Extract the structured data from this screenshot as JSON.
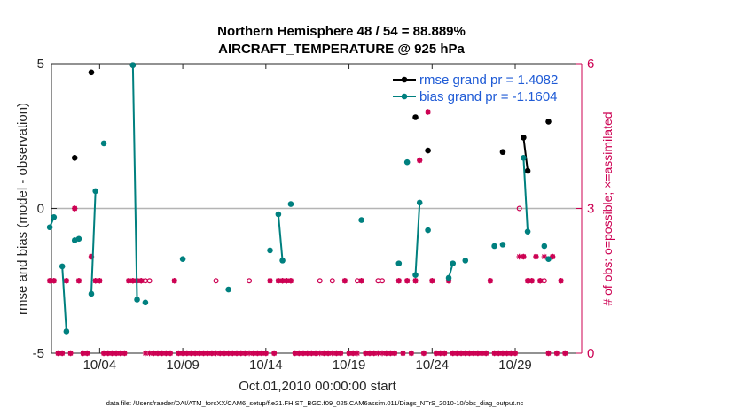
{
  "titles": {
    "line1": "Northern Hemisphere 48 / 54 = 88.889%",
    "line2": "AIRCRAFT_TEMPERATURE @ 925 hPa"
  },
  "footer": "data file: /Users/raeder/DAI/ATM_forcXX/CAM6_setup/f.e21.FHIST_BGC.f09_025.CAM6assim.011/Diags_NTrS_2010-10/obs_diag_output.nc",
  "colors": {
    "rmse": "#000000",
    "bias": "#00807f",
    "obs": "#cc0052",
    "legend_text": "#1f5bd6",
    "zero_line": "#b4b4b4"
  },
  "chart_data": {
    "type": "scatter",
    "xlabel": "Oct.01,2010 00:00:00 start",
    "ylabel": "rmse and bias (model - observation)",
    "y2label": "# of obs: o=possible; ×=assimilated",
    "xlim": [
      0.1,
      32.0
    ],
    "ylim": [
      -5,
      5
    ],
    "y2lim": [
      0,
      6
    ],
    "xticks": [
      3,
      8,
      13,
      18,
      23,
      28
    ],
    "xtick_labels": [
      "10/04",
      "10/09",
      "10/14",
      "10/19",
      "10/24",
      "10/29"
    ],
    "yticks": [
      -5,
      0,
      5
    ],
    "ytick_labels": [
      "-5",
      "0",
      "5"
    ],
    "y2ticks": [
      0,
      3,
      6
    ],
    "y2tick_labels": [
      "0",
      "3",
      "6"
    ],
    "grid": false,
    "legend_position": "top-right",
    "series": [
      {
        "name": "rmse grand pr = 1.4082",
        "segments": [
          [
            [
              1.5,
              1.75
            ]
          ],
          [
            [
              2.5,
              4.7
            ]
          ],
          [
            [
              5.0,
              4.95
            ]
          ],
          [
            [
              22.0,
              3.15
            ]
          ],
          [
            [
              22.75,
              2.0
            ]
          ],
          [
            [
              27.25,
              1.95
            ]
          ],
          [
            [
              28.5,
              2.45
            ],
            [
              28.75,
              1.3
            ]
          ],
          [
            [
              30.0,
              3.0
            ]
          ]
        ]
      },
      {
        "name": "bias grand pr = -1.1604",
        "segments": [
          [
            [
              0.0,
              -0.65
            ],
            [
              0.25,
              -0.3
            ]
          ],
          [
            [
              0.75,
              -2.0
            ],
            [
              1.0,
              -4.25
            ]
          ],
          [
            [
              1.5,
              -1.1
            ],
            [
              1.75,
              -1.05
            ]
          ],
          [
            [
              2.5,
              -2.95
            ],
            [
              2.75,
              0.6
            ]
          ],
          [
            [
              3.25,
              2.25
            ]
          ],
          [
            [
              5.0,
              4.95
            ],
            [
              5.25,
              -3.15
            ]
          ],
          [
            [
              5.75,
              -3.25
            ]
          ],
          [
            [
              8.0,
              -1.75
            ]
          ],
          [
            [
              10.75,
              -2.8
            ]
          ],
          [
            [
              13.25,
              -1.45
            ]
          ],
          [
            [
              13.75,
              -0.2
            ],
            [
              14.0,
              -1.8
            ]
          ],
          [
            [
              14.5,
              0.15
            ]
          ],
          [
            [
              18.75,
              -0.4
            ]
          ],
          [
            [
              21.0,
              -1.9
            ]
          ],
          [
            [
              21.5,
              1.6
            ]
          ],
          [
            [
              22.0,
              -2.3
            ],
            [
              22.25,
              0.2
            ]
          ],
          [
            [
              22.75,
              -0.75
            ]
          ],
          [
            [
              24.0,
              -2.4
            ],
            [
              24.25,
              -1.9
            ]
          ],
          [
            [
              25.0,
              -1.8
            ]
          ],
          [
            [
              26.75,
              -1.3
            ]
          ],
          [
            [
              27.25,
              -1.25
            ]
          ],
          [
            [
              28.5,
              1.75
            ],
            [
              28.75,
              -0.8
            ]
          ],
          [
            [
              29.75,
              -1.3
            ]
          ],
          [
            [
              30.0,
              -1.75
            ]
          ]
        ]
      }
    ],
    "obs_possible": [
      [
        0,
        1.5
      ],
      [
        0.25,
        1.5
      ],
      [
        0.5,
        0
      ],
      [
        0.75,
        0
      ],
      [
        1,
        1.5
      ],
      [
        1.25,
        0
      ],
      [
        1.5,
        3
      ],
      [
        1.75,
        1.5
      ],
      [
        2,
        0
      ],
      [
        2.25,
        0
      ],
      [
        2.5,
        2
      ],
      [
        2.75,
        1.5
      ],
      [
        3,
        1.5
      ],
      [
        3.25,
        0
      ],
      [
        3.5,
        0
      ],
      [
        3.75,
        0
      ],
      [
        4,
        0
      ],
      [
        4.25,
        0
      ],
      [
        4.5,
        0
      ],
      [
        4.75,
        1.5
      ],
      [
        5,
        1.5
      ],
      [
        5.25,
        1.5
      ],
      [
        5.5,
        1.5
      ],
      [
        5.75,
        1.5
      ],
      [
        6,
        1.5
      ],
      [
        6.25,
        0
      ],
      [
        6.5,
        0
      ],
      [
        6.75,
        0
      ],
      [
        7,
        0
      ],
      [
        7.25,
        0
      ],
      [
        7.5,
        1.5
      ],
      [
        7.75,
        0
      ],
      [
        8,
        0
      ],
      [
        8.25,
        0
      ],
      [
        8.5,
        0
      ],
      [
        8.75,
        0
      ],
      [
        9,
        0
      ],
      [
        9.25,
        0
      ],
      [
        9.5,
        0
      ],
      [
        9.75,
        0
      ],
      [
        10,
        1.5
      ],
      [
        10.25,
        0
      ],
      [
        10.5,
        0
      ],
      [
        10.75,
        0
      ],
      [
        11,
        0
      ],
      [
        11.25,
        0
      ],
      [
        11.5,
        0
      ],
      [
        11.75,
        0
      ],
      [
        12,
        1.5
      ],
      [
        12.25,
        0
      ],
      [
        12.5,
        0
      ],
      [
        12.75,
        0
      ],
      [
        13,
        0
      ],
      [
        13.25,
        1.5
      ],
      [
        13.5,
        0
      ],
      [
        13.75,
        1.5
      ],
      [
        14,
        1.5
      ],
      [
        14.25,
        1.5
      ],
      [
        14.5,
        1.5
      ],
      [
        14.75,
        0
      ],
      [
        15,
        0
      ],
      [
        15.25,
        0
      ],
      [
        15.5,
        0
      ],
      [
        15.75,
        0
      ],
      [
        16,
        0
      ],
      [
        16.25,
        1.5
      ],
      [
        16.5,
        0
      ],
      [
        16.75,
        0
      ],
      [
        17,
        1.5
      ],
      [
        17.25,
        0
      ],
      [
        17.5,
        0
      ],
      [
        17.75,
        1.5
      ],
      [
        18,
        0
      ],
      [
        18.25,
        0
      ],
      [
        18.5,
        1.5
      ],
      [
        18.75,
        1.5
      ],
      [
        19,
        0
      ],
      [
        19.25,
        0
      ],
      [
        19.5,
        0
      ],
      [
        19.75,
        1.5
      ],
      [
        20,
        1.5
      ],
      [
        20.25,
        0
      ],
      [
        20.5,
        0
      ],
      [
        20.75,
        0
      ],
      [
        21,
        1.5
      ],
      [
        21.25,
        0
      ],
      [
        21.5,
        1.5
      ],
      [
        21.75,
        0
      ],
      [
        22,
        1.5
      ],
      [
        22.25,
        4
      ],
      [
        22.5,
        0
      ],
      [
        22.75,
        5
      ],
      [
        23,
        1.5
      ],
      [
        23.25,
        0
      ],
      [
        23.5,
        0
      ],
      [
        23.75,
        0
      ],
      [
        24,
        1.5
      ],
      [
        24.25,
        0
      ],
      [
        24.5,
        0
      ],
      [
        24.75,
        0
      ],
      [
        25,
        0
      ],
      [
        25.25,
        0
      ],
      [
        25.5,
        0
      ],
      [
        25.75,
        0
      ],
      [
        26,
        0
      ],
      [
        26.25,
        0
      ],
      [
        26.5,
        1.5
      ],
      [
        26.75,
        0
      ],
      [
        27,
        0
      ],
      [
        27.25,
        0
      ],
      [
        27.5,
        0
      ],
      [
        27.75,
        0
      ],
      [
        28,
        0
      ],
      [
        28.25,
        3
      ],
      [
        28.5,
        2
      ],
      [
        28.75,
        1.5
      ],
      [
        29,
        1.5
      ],
      [
        29.25,
        2
      ],
      [
        29.5,
        1.5
      ],
      [
        29.75,
        1.5
      ],
      [
        30,
        0
      ],
      [
        30.25,
        2
      ],
      [
        30.5,
        0
      ],
      [
        30.75,
        1.5
      ],
      [
        31,
        0
      ]
    ],
    "obs_assimilated": [
      [
        0,
        1.5
      ],
      [
        0.25,
        1.5
      ],
      [
        0.5,
        0
      ],
      [
        0.75,
        0
      ],
      [
        1,
        1.5
      ],
      [
        1.25,
        0
      ],
      [
        1.5,
        3
      ],
      [
        1.75,
        1.5
      ],
      [
        2,
        0
      ],
      [
        2.25,
        0
      ],
      [
        2.5,
        2
      ],
      [
        2.75,
        1.5
      ],
      [
        3,
        1.5
      ],
      [
        3.25,
        0
      ],
      [
        3.5,
        0
      ],
      [
        3.75,
        0
      ],
      [
        4,
        0
      ],
      [
        4.25,
        0
      ],
      [
        4.5,
        0
      ],
      [
        4.75,
        1.5
      ],
      [
        5,
        1.5
      ],
      [
        5.25,
        1.5
      ],
      [
        5.5,
        1.5
      ],
      [
        5.75,
        0
      ],
      [
        6,
        0
      ],
      [
        6.25,
        0
      ],
      [
        6.5,
        0
      ],
      [
        6.75,
        0
      ],
      [
        7,
        0
      ],
      [
        7.25,
        0
      ],
      [
        7.5,
        1.5
      ],
      [
        7.75,
        0
      ],
      [
        8,
        0
      ],
      [
        8.25,
        0
      ],
      [
        8.5,
        0
      ],
      [
        8.75,
        0
      ],
      [
        9,
        0
      ],
      [
        9.25,
        0
      ],
      [
        9.5,
        0
      ],
      [
        9.75,
        0
      ],
      [
        10,
        0
      ],
      [
        10.25,
        0
      ],
      [
        10.5,
        0
      ],
      [
        10.75,
        0
      ],
      [
        11,
        0
      ],
      [
        11.25,
        0
      ],
      [
        11.5,
        0
      ],
      [
        11.75,
        0
      ],
      [
        12,
        0
      ],
      [
        12.25,
        0
      ],
      [
        12.5,
        0
      ],
      [
        12.75,
        0
      ],
      [
        13,
        0
      ],
      [
        13.25,
        1.5
      ],
      [
        13.5,
        0
      ],
      [
        13.75,
        1.5
      ],
      [
        14,
        1.5
      ],
      [
        14.25,
        1.5
      ],
      [
        14.5,
        1.5
      ],
      [
        14.75,
        0
      ],
      [
        15,
        0
      ],
      [
        15.25,
        0
      ],
      [
        15.5,
        0
      ],
      [
        15.75,
        0
      ],
      [
        16,
        0
      ],
      [
        16.25,
        0
      ],
      [
        16.5,
        0
      ],
      [
        16.75,
        0
      ],
      [
        17,
        0
      ],
      [
        17.25,
        0
      ],
      [
        17.5,
        0
      ],
      [
        17.75,
        1.5
      ],
      [
        18,
        0
      ],
      [
        18.25,
        0
      ],
      [
        18.5,
        0
      ],
      [
        18.75,
        1.5
      ],
      [
        19,
        0
      ],
      [
        19.25,
        0
      ],
      [
        19.5,
        0
      ],
      [
        19.75,
        0
      ],
      [
        20,
        0
      ],
      [
        20.25,
        0
      ],
      [
        20.5,
        0
      ],
      [
        20.75,
        0
      ],
      [
        21,
        1.5
      ],
      [
        21.25,
        0
      ],
      [
        21.5,
        1.5
      ],
      [
        21.75,
        0
      ],
      [
        22,
        1.5
      ],
      [
        22.25,
        4
      ],
      [
        22.5,
        0
      ],
      [
        22.75,
        5
      ],
      [
        23,
        1.5
      ],
      [
        23.25,
        0
      ],
      [
        23.5,
        0
      ],
      [
        23.75,
        0
      ],
      [
        24,
        1.5
      ],
      [
        24.25,
        0
      ],
      [
        24.5,
        0
      ],
      [
        24.75,
        0
      ],
      [
        25,
        0
      ],
      [
        25.25,
        0
      ],
      [
        25.5,
        0
      ],
      [
        25.75,
        0
      ],
      [
        26,
        0
      ],
      [
        26.25,
        0
      ],
      [
        26.5,
        1.5
      ],
      [
        26.75,
        0
      ],
      [
        27,
        0
      ],
      [
        27.25,
        0
      ],
      [
        27.5,
        0
      ],
      [
        27.75,
        0
      ],
      [
        28,
        0
      ],
      [
        28.25,
        2
      ],
      [
        28.5,
        2
      ],
      [
        28.75,
        1.5
      ],
      [
        29,
        1.5
      ],
      [
        29.25,
        2
      ],
      [
        29.5,
        1.5
      ],
      [
        29.75,
        2
      ],
      [
        30,
        0
      ],
      [
        30.25,
        2
      ],
      [
        30.5,
        0
      ],
      [
        30.75,
        1.5
      ],
      [
        31,
        0
      ]
    ]
  }
}
